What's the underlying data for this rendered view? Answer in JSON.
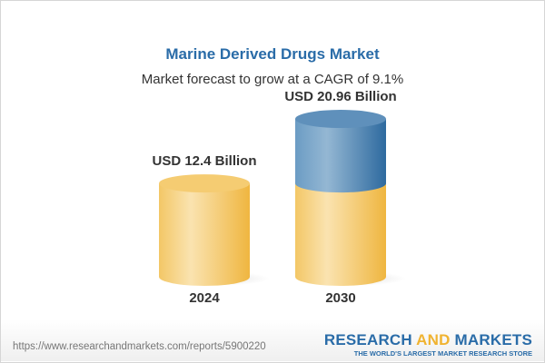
{
  "header": {
    "title": "Marine Derived Drugs Market",
    "subtitle": "Market forecast to grow at a CAGR of 9.1%"
  },
  "chart_data": {
    "type": "bar",
    "style": "3d-cylinder",
    "categories": [
      "2024",
      "2030"
    ],
    "values": [
      12.4,
      20.96
    ],
    "data_labels": [
      "USD 12.4 Billion",
      "USD 20.96 Billion"
    ],
    "unit": "USD Billion",
    "colors": {
      "base": "#f2c14e",
      "growth": "#3f7bb0"
    },
    "grid": false
  },
  "footer": {
    "url": "https://www.researchandmarkets.com/reports/5900220",
    "logo_part1": "RESEARCH ",
    "logo_part2": "AND",
    "logo_part3": " MARKETS",
    "tagline": "THE WORLD'S LARGEST MARKET RESEARCH STORE"
  }
}
